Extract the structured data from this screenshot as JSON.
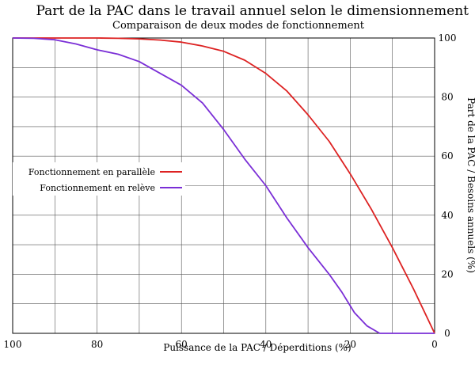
{
  "chart_data": {
    "type": "line",
    "title": "Part de la PAC dans le travail annuel selon le dimensionnement",
    "subtitle": "Comparaison de deux modes de fonctionnement",
    "xlabel": "Puissance de la PAC / Déperditions (%)",
    "ylabel": "Part de la PAC / Besoins annuels (%)",
    "xlim": [
      0,
      100
    ],
    "ylim": [
      0,
      100
    ],
    "x_reversed": true,
    "y_axis_side": "right",
    "grid": true,
    "legend_position": "center-left",
    "x_ticks": [
      0,
      20,
      40,
      60,
      80,
      100
    ],
    "y_ticks": [
      0,
      20,
      40,
      60,
      80,
      100
    ],
    "series": [
      {
        "name": "Fonctionnement en parallèle",
        "color": "#dd2222",
        "x": [
          0,
          5,
          10,
          15,
          20,
          25,
          30,
          35,
          40,
          45,
          50,
          55,
          60,
          65,
          70,
          75,
          80,
          85,
          90,
          95,
          100
        ],
        "y": [
          0,
          15,
          29,
          42,
          54,
          65,
          74,
          82,
          88,
          92.5,
          95.5,
          97.3,
          98.6,
          99.3,
          99.7,
          99.9,
          100,
          100,
          100,
          100,
          100
        ]
      },
      {
        "name": "Fonctionnement en relève",
        "color": "#7a2ed6",
        "x": [
          0,
          13,
          16,
          19,
          22,
          25,
          30,
          35,
          40,
          45,
          50,
          55,
          60,
          65,
          70,
          75,
          80,
          85,
          90,
          95,
          100
        ],
        "y": [
          0,
          0,
          2.5,
          7,
          14,
          20,
          29,
          39,
          50,
          59,
          69,
          78,
          84,
          88,
          92,
          94.5,
          96,
          98,
          99.4,
          99.9,
          100
        ]
      }
    ]
  }
}
